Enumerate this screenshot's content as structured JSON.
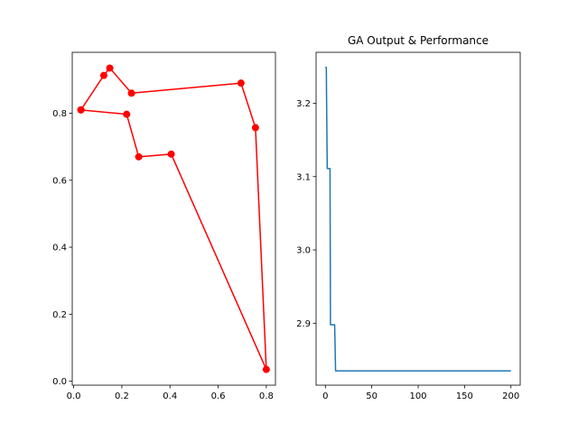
{
  "figure": {
    "background": "#ffffff"
  },
  "chart_data": [
    {
      "type": "line",
      "title": "",
      "xlabel": "",
      "ylabel": "",
      "xlim": [
        -0.006,
        0.838
      ],
      "ylim": [
        -0.012,
        0.982
      ],
      "xticks": [
        0.0,
        0.2,
        0.4,
        0.6,
        0.8
      ],
      "xtick_labels": [
        "0.0",
        "0.2",
        "0.4",
        "0.6",
        "0.8"
      ],
      "yticks": [
        0.0,
        0.2,
        0.4,
        0.6,
        0.8
      ],
      "ytick_labels": [
        "0.0",
        "0.2",
        "0.4",
        "0.6",
        "0.8"
      ],
      "grid": false,
      "series": [
        {
          "color": "#ff0000",
          "marker": "circle",
          "x": [
            0.03,
            0.125,
            0.15,
            0.24,
            0.695,
            0.755,
            0.8,
            0.405,
            0.27,
            0.22,
            0.03
          ],
          "y": [
            0.81,
            0.913,
            0.935,
            0.86,
            0.89,
            0.757,
            0.035,
            0.678,
            0.67,
            0.797,
            0.81
          ]
        }
      ]
    },
    {
      "type": "line",
      "title": "GA Output & Performance",
      "xlabel": "",
      "ylabel": "",
      "xlim": [
        -10,
        210
      ],
      "ylim": [
        2.8155,
        3.2695
      ],
      "xticks": [
        0,
        50,
        100,
        150,
        200
      ],
      "xtick_labels": [
        "0",
        "50",
        "100",
        "150",
        "200"
      ],
      "yticks": [
        2.9,
        3.0,
        3.1,
        3.2
      ],
      "ytick_labels": [
        "2.9",
        "3.0",
        "3.1",
        "3.2"
      ],
      "grid": false,
      "series": [
        {
          "color": "#1f77b4",
          "marker": "none",
          "x": [
            0,
            1,
            2,
            2.5,
            5,
            5.5,
            10,
            11,
            200
          ],
          "y": [
            3.249,
            3.249,
            3.111,
            3.111,
            3.111,
            2.898,
            2.898,
            2.835,
            2.835
          ]
        }
      ]
    }
  ]
}
